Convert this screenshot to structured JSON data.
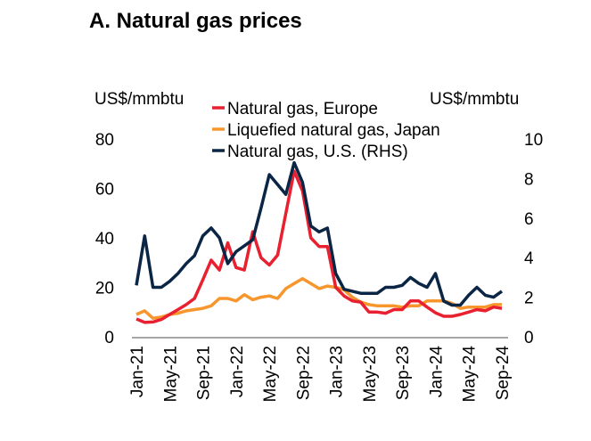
{
  "title": "A. Natural gas prices",
  "chart_data": {
    "type": "line",
    "left_axis_label": "US$/mmbtu",
    "right_axis_label": "US$/mmbtu",
    "left_ylim": [
      0,
      80
    ],
    "right_ylim": [
      0,
      10
    ],
    "left_ticks": [
      "0",
      "20",
      "40",
      "60",
      "80"
    ],
    "right_ticks": [
      "0",
      "2",
      "4",
      "6",
      "8",
      "10"
    ],
    "x_tick_labels": [
      "Jan-21",
      "May-21",
      "Sep-21",
      "Jan-22",
      "May-22",
      "Sep-22",
      "Jan-23",
      "May-23",
      "Sep-23",
      "Jan-24",
      "May-24",
      "Sep-24"
    ],
    "x_start": "Jan-21",
    "x_end": "Sep-24",
    "frequency": "monthly",
    "legend_position": "top",
    "series": [
      {
        "name": "Natural gas, Europe",
        "axis": "left",
        "color": "#e8202f",
        "values": [
          7.2,
          5.8,
          6,
          7,
          9,
          11,
          13,
          15.5,
          23,
          31,
          27,
          38,
          28,
          27,
          42.5,
          32,
          29,
          33,
          50,
          67,
          59,
          40,
          36.5,
          36.5,
          20,
          16.5,
          14.5,
          14,
          10,
          10,
          9.5,
          11,
          11,
          14.5,
          14.5,
          12,
          9.7,
          8.3,
          8.3,
          9,
          10,
          11,
          10.5,
          12,
          11.5
        ]
      },
      {
        "name": "Liquefied natural gas, Japan",
        "axis": "left",
        "color": "#f7962d",
        "values": [
          9,
          10.5,
          7.5,
          8,
          9,
          9.5,
          10.5,
          11,
          11.5,
          12.5,
          15.5,
          15.5,
          14.5,
          17,
          15,
          16,
          16.5,
          15.5,
          19.5,
          21.5,
          23.5,
          21.5,
          19.5,
          20.5,
          20,
          19,
          16,
          14,
          13,
          12.5,
          12.5,
          12.5,
          12,
          12.5,
          12.5,
          14.5,
          14.5,
          14.5,
          13.5,
          11.5,
          12,
          12,
          12,
          13,
          13
        ]
      },
      {
        "name": "Natural gas, U.S. (RHS)",
        "axis": "right",
        "color": "#0b2545",
        "values": [
          2.6,
          5.1,
          2.5,
          2.5,
          2.8,
          3.2,
          3.7,
          4.1,
          5.1,
          5.5,
          5.0,
          3.7,
          4.3,
          4.6,
          4.9,
          6.5,
          8.2,
          7.7,
          7.2,
          8.8,
          7.8,
          5.6,
          5.3,
          5.5,
          3.2,
          2.4,
          2.3,
          2.2,
          2.2,
          2.2,
          2.5,
          2.5,
          2.6,
          3.0,
          2.7,
          2.5,
          3.2,
          1.8,
          1.6,
          1.6,
          2.1,
          2.5,
          2.1,
          2.0,
          2.3
        ]
      }
    ]
  }
}
